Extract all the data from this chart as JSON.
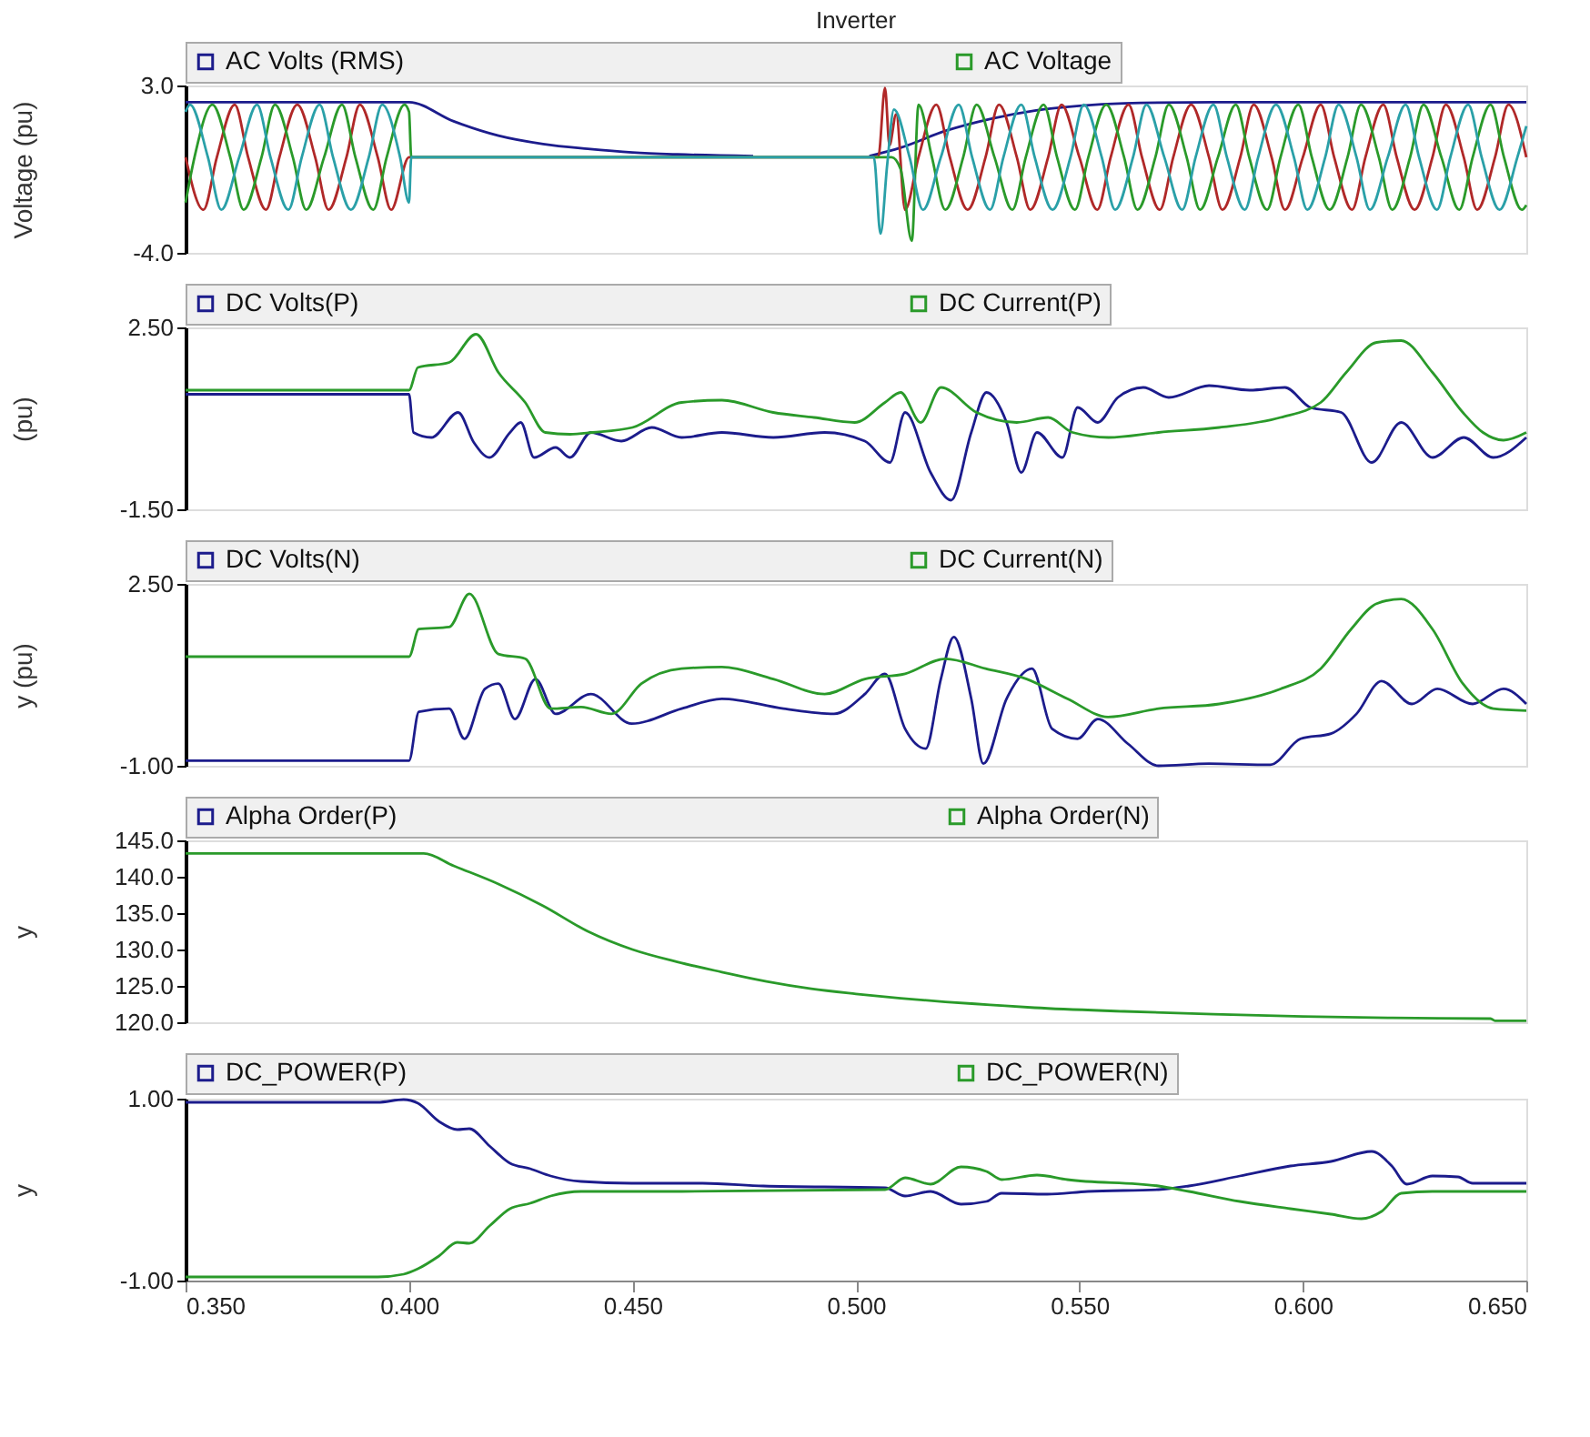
{
  "chart_data": [
    {
      "type": "line",
      "title": "Inverter",
      "ylabel": "Voltage (pu)",
      "legend": "top",
      "tick_labels": "y",
      "grid": false,
      "xlim": [
        0.35,
        0.65
      ],
      "ylim": [
        -4.0,
        3.0
      ],
      "yticks": [
        {
          "value": -4.0,
          "label": "-4.0"
        },
        {
          "value": 3.0,
          "label": "3.0"
        }
      ],
      "series": [
        {
          "name": "AC Volts (RMS)",
          "color": "#1c1c8c",
          "x": [
            0.35,
            0.4,
            0.41,
            0.42,
            0.43,
            0.44,
            0.45,
            0.46,
            0.477,
            0.478,
            0.503,
            0.51,
            0.52,
            0.53,
            0.54,
            0.55,
            0.56,
            0.58,
            0.65
          ],
          "values": [
            2.3,
            2.3,
            1.5,
            0.9,
            0.55,
            0.35,
            0.2,
            0.12,
            0.05,
            null,
            0.05,
            0.4,
            1.1,
            1.6,
            1.95,
            2.15,
            2.25,
            2.3,
            2.3
          ]
        },
        {
          "color": "#b02828",
          "x": [
            0.35,
            0.354,
            0.357,
            0.361,
            0.364,
            0.368,
            0.371,
            0.375,
            0.379,
            0.382,
            0.386,
            0.389,
            0.393,
            0.396,
            0.4,
            0.48,
            0.505,
            0.5065,
            0.5075,
            0.509,
            0.511,
            0.514,
            0.518,
            0.521,
            0.525,
            0.529,
            0.532,
            0.536,
            0.539,
            0.543,
            0.546,
            0.55,
            0.554,
            0.557,
            0.561,
            0.564,
            0.568,
            0.571,
            0.575,
            0.579,
            0.582,
            0.586,
            0.589,
            0.593,
            0.596,
            0.6,
            0.604,
            0.607,
            0.611,
            0.614,
            0.618,
            0.621,
            0.625,
            0.629,
            0.632,
            0.636,
            0.639,
            0.643,
            0.646,
            0.65
          ],
          "values": [
            0,
            -2.2,
            0,
            2.2,
            0,
            -2.2,
            0,
            2.2,
            0,
            -2.2,
            0,
            2.2,
            0,
            -2.2,
            0,
            0,
            0,
            2.9,
            0.5,
            1.8,
            -2.2,
            0,
            2.2,
            0,
            -2.2,
            0,
            2.2,
            0,
            -2.2,
            0,
            2.2,
            0,
            -2.2,
            0,
            2.2,
            0,
            -2.2,
            0,
            2.2,
            0,
            -2.2,
            0,
            2.2,
            0,
            -2.2,
            0,
            2.2,
            0,
            -2.2,
            0,
            2.2,
            0,
            -2.2,
            0,
            2.2,
            0,
            -2.2,
            0,
            2.2,
            0
          ]
        },
        {
          "name": "AC Voltage",
          "color": "#2a9a2a",
          "x": [
            0.35,
            0.352,
            0.356,
            0.36,
            0.363,
            0.367,
            0.37,
            0.374,
            0.377,
            0.381,
            0.385,
            0.388,
            0.392,
            0.395,
            0.399,
            0.4,
            0.4005,
            0.508,
            0.51,
            0.5125,
            0.514,
            0.517,
            0.52,
            0.524,
            0.527,
            0.531,
            0.535,
            0.538,
            0.542,
            0.545,
            0.549,
            0.552,
            0.556,
            0.56,
            0.563,
            0.567,
            0.57,
            0.574,
            0.577,
            0.581,
            0.585,
            0.588,
            0.592,
            0.595,
            0.599,
            0.602,
            0.606,
            0.61,
            0.613,
            0.617,
            0.62,
            0.624,
            0.627,
            0.631,
            0.635,
            0.638,
            0.642,
            0.645,
            0.649,
            0.65
          ],
          "values": [
            -1.9,
            0,
            2.2,
            0,
            -2.2,
            0,
            2.2,
            0,
            -2.2,
            0,
            2.2,
            0,
            -2.2,
            0,
            2.2,
            1.9,
            0,
            0,
            -0.5,
            -3.5,
            2.2,
            0,
            -2.2,
            0,
            2.2,
            0,
            -2.2,
            0,
            2.2,
            0,
            -2.2,
            0,
            2.2,
            0,
            -2.2,
            0,
            2.2,
            0,
            -2.2,
            0,
            2.2,
            0,
            -2.2,
            0,
            2.2,
            0,
            -2.2,
            0,
            2.2,
            0,
            -2.2,
            0,
            2.2,
            0,
            -2.2,
            0,
            2.2,
            0,
            -2.2,
            -2.0
          ]
        },
        {
          "color": "#2aa0a8",
          "x": [
            0.35,
            0.351,
            0.355,
            0.358,
            0.362,
            0.366,
            0.369,
            0.373,
            0.376,
            0.38,
            0.383,
            0.387,
            0.391,
            0.394,
            0.398,
            0.4,
            0.4005,
            0.504,
            0.5055,
            0.507,
            0.5085,
            0.512,
            0.515,
            0.519,
            0.523,
            0.526,
            0.53,
            0.533,
            0.537,
            0.54,
            0.544,
            0.548,
            0.551,
            0.555,
            0.558,
            0.562,
            0.565,
            0.569,
            0.573,
            0.576,
            0.58,
            0.583,
            0.587,
            0.59,
            0.594,
            0.598,
            0.601,
            0.605,
            0.608,
            0.612,
            0.615,
            0.619,
            0.623,
            0.626,
            0.63,
            0.633,
            0.637,
            0.64,
            0.644,
            0.648,
            0.65
          ],
          "values": [
            1.9,
            2.2,
            0,
            -2.2,
            0,
            2.2,
            0,
            -2.2,
            0,
            2.2,
            0,
            -2.2,
            0,
            2.2,
            0,
            -1.9,
            0,
            0,
            -3.2,
            -0.3,
            2.0,
            0,
            -2.2,
            0,
            2.2,
            0,
            -2.2,
            0,
            2.2,
            0,
            -2.2,
            0,
            2.2,
            0,
            -2.2,
            0,
            2.2,
            0,
            -2.2,
            0,
            2.2,
            0,
            -2.2,
            0,
            2.2,
            0,
            -2.2,
            0,
            2.2,
            0,
            -2.2,
            0,
            2.2,
            0,
            -2.2,
            0,
            2.2,
            0,
            -2.2,
            0,
            1.3
          ]
        }
      ]
    },
    {
      "type": "line",
      "ylabel": "(pu)",
      "legend": "top",
      "tick_labels": "y",
      "grid": false,
      "xlim": [
        0.35,
        0.65
      ],
      "ylim": [
        -1.5,
        2.5
      ],
      "yticks": [
        {
          "value": -1.5,
          "label": "-1.50"
        },
        {
          "value": 2.5,
          "label": "2.50"
        }
      ],
      "series": [
        {
          "name": "DC Volts(P)",
          "color": "#1c1c8c",
          "x": [
            0.35,
            0.4,
            0.401,
            0.405,
            0.411,
            0.4145,
            0.418,
            0.4226,
            0.425,
            0.428,
            0.4328,
            0.436,
            0.4407,
            0.4475,
            0.4543,
            0.461,
            0.47,
            0.4815,
            0.493,
            0.502,
            0.5076,
            0.511,
            0.5167,
            0.5213,
            0.5258,
            0.5292,
            0.5337,
            0.537,
            0.5405,
            0.5462,
            0.5496,
            0.5541,
            0.5586,
            0.5643,
            0.57,
            0.579,
            0.5881,
            0.596,
            0.6017,
            0.6086,
            0.6154,
            0.622,
            0.629,
            0.636,
            0.6426,
            0.65
          ],
          "values": [
            1.03,
            1.03,
            0.19,
            0.08,
            0.63,
            -0.03,
            -0.36,
            0.19,
            0.41,
            -0.36,
            -0.14,
            -0.36,
            0.19,
            0.0,
            0.3,
            0.08,
            0.19,
            0.08,
            0.19,
            0.0,
            -0.47,
            0.63,
            -0.69,
            -1.3,
            0.19,
            1.07,
            0.41,
            -0.69,
            0.19,
            -0.36,
            0.74,
            0.41,
            0.96,
            1.18,
            0.96,
            1.22,
            1.12,
            1.18,
            0.74,
            0.63,
            -0.47,
            0.41,
            -0.36,
            0.08,
            -0.36,
            0.08
          ]
        },
        {
          "name": "DC Current(P)",
          "color": "#2a9a2a",
          "x": [
            0.35,
            0.4,
            0.402,
            0.409,
            0.415,
            0.42,
            0.426,
            0.4305,
            0.436,
            0.441,
            0.45,
            0.461,
            0.47,
            0.4815,
            0.4906,
            0.4997,
            0.5065,
            0.51,
            0.5145,
            0.519,
            0.527,
            0.536,
            0.543,
            0.5485,
            0.5565,
            0.5677,
            0.5813,
            0.595,
            0.604,
            0.6097,
            0.6165,
            0.622,
            0.629,
            0.6358,
            0.6403,
            0.6449,
            0.65
          ],
          "values": [
            1.12,
            1.12,
            1.62,
            1.73,
            2.35,
            1.51,
            0.85,
            0.19,
            0.15,
            0.19,
            0.3,
            0.85,
            0.9,
            0.63,
            0.52,
            0.41,
            0.85,
            1.07,
            0.41,
            1.18,
            0.63,
            0.41,
            0.52,
            0.19,
            0.08,
            0.19,
            0.3,
            0.52,
            0.85,
            1.51,
            2.17,
            2.21,
            1.51,
            0.63,
            0.19,
            0.02,
            0.19
          ]
        }
      ]
    },
    {
      "type": "line",
      "ylabel": "y (pu)",
      "legend": "top",
      "tick_labels": "y",
      "grid": false,
      "xlim": [
        0.35,
        0.65
      ],
      "ylim": [
        -1.0,
        2.5
      ],
      "yticks": [
        {
          "value": -1.0,
          "label": "-1.00"
        },
        {
          "value": 2.5,
          "label": "2.50"
        }
      ],
      "series": [
        {
          "name": "DC Volts(N)",
          "color": "#1c1c8c",
          "x": [
            0.35,
            0.4,
            0.4022,
            0.409,
            0.4124,
            0.417,
            0.42,
            0.4237,
            0.4283,
            0.4328,
            0.4407,
            0.4498,
            0.461,
            0.47,
            0.4838,
            0.4951,
            0.502,
            0.5065,
            0.511,
            0.5156,
            0.519,
            0.5219,
            0.5258,
            0.5285,
            0.5337,
            0.5394,
            0.5439,
            0.5496,
            0.5541,
            0.5609,
            0.5677,
            0.579,
            0.5927,
            0.5995,
            0.6063,
            0.612,
            0.6176,
            0.6244,
            0.6301,
            0.638,
            0.6449,
            0.65
          ],
          "values": [
            -0.9,
            -0.9,
            0.04,
            0.1,
            -0.48,
            0.48,
            0.58,
            -0.1,
            0.67,
            0.0,
            0.38,
            -0.19,
            0.1,
            0.29,
            0.1,
            0.0,
            0.38,
            0.77,
            -0.29,
            -0.67,
            0.67,
            1.48,
            0.29,
            -0.96,
            0.29,
            0.87,
            -0.29,
            -0.48,
            -0.1,
            -0.58,
            -1.0,
            -0.96,
            -0.98,
            -0.48,
            -0.38,
            0.0,
            0.63,
            0.19,
            0.48,
            0.19,
            0.48,
            0.19
          ]
        },
        {
          "name": "DC Current(N)",
          "color": "#2a9a2a",
          "x": [
            0.35,
            0.4,
            0.4022,
            0.409,
            0.4135,
            0.42,
            0.426,
            0.4317,
            0.4385,
            0.4453,
            0.452,
            0.461,
            0.47,
            0.4815,
            0.493,
            0.502,
            0.511,
            0.52,
            0.529,
            0.5382,
            0.5473,
            0.5564,
            0.5677,
            0.5813,
            0.595,
            0.604,
            0.6108,
            0.6165,
            0.622,
            0.629,
            0.6358,
            0.6426,
            0.65
          ],
          "values": [
            1.1,
            1.1,
            1.63,
            1.67,
            2.31,
            1.15,
            1.06,
            0.1,
            0.13,
            0.0,
            0.58,
            0.87,
            0.9,
            0.67,
            0.38,
            0.67,
            0.77,
            1.06,
            0.87,
            0.67,
            0.29,
            -0.06,
            0.1,
            0.19,
            0.48,
            0.87,
            1.63,
            2.12,
            2.21,
            1.63,
            0.58,
            0.1,
            0.06
          ]
        }
      ]
    },
    {
      "type": "line",
      "ylabel": "y",
      "legend": "top",
      "tick_labels": "y",
      "grid": false,
      "xlim": [
        0.35,
        0.65
      ],
      "ylim": [
        120.0,
        145.0
      ],
      "yticks": [
        {
          "value": 120,
          "label": "120.0"
        },
        {
          "value": 125,
          "label": "125.0"
        },
        {
          "value": 130,
          "label": "130.0"
        },
        {
          "value": 135,
          "label": "135.0"
        },
        {
          "value": 140,
          "label": "140.0"
        },
        {
          "value": 145,
          "label": "145.0"
        }
      ],
      "x": [
        0.35,
        0.4033,
        0.41,
        0.42,
        0.43,
        0.44,
        0.45,
        0.46,
        0.47,
        0.48,
        0.49,
        0.5,
        0.51,
        0.52,
        0.53,
        0.54,
        0.56,
        0.58,
        0.6,
        0.62,
        0.642,
        0.643,
        0.65
      ],
      "series": [
        {
          "name": "Alpha Order(P)",
          "color": "#1c1c8c",
          "values": [
            null,
            null,
            null,
            null,
            null,
            null,
            null,
            null,
            null,
            null,
            null,
            null,
            null,
            null,
            null,
            null,
            null,
            null,
            null,
            null,
            null,
            null,
            null
          ]
        },
        {
          "name": "Alpha Order(N)",
          "color": "#2a9a2a",
          "values": [
            143.2,
            143.2,
            141.5,
            139,
            136,
            132.5,
            130,
            128.3,
            126.9,
            125.6,
            124.6,
            123.9,
            123.3,
            122.8,
            122.4,
            122.0,
            121.5,
            121.1,
            120.8,
            120.6,
            120.5,
            120.2,
            120.2
          ]
        }
      ]
    },
    {
      "type": "line",
      "ylabel": "y",
      "legend": "top",
      "grid": false,
      "xlim": [
        0.35,
        0.65
      ],
      "xticks": [
        {
          "value": 0.35,
          "label": "0.350"
        },
        {
          "value": 0.4,
          "label": "0.400"
        },
        {
          "value": 0.45,
          "label": "0.450"
        },
        {
          "value": 0.5,
          "label": "0.500"
        },
        {
          "value": 0.55,
          "label": "0.550"
        },
        {
          "value": 0.6,
          "label": "0.600"
        },
        {
          "value": 0.65,
          "label": "0.650"
        }
      ],
      "ylim": [
        -1.0,
        1.0
      ],
      "yticks": [
        {
          "value": -1.0,
          "label": "-1.00"
        },
        {
          "value": 1.0,
          "label": "1.00"
        }
      ],
      "series": [
        {
          "name": "DC_POWER(P)",
          "color": "#1c1c8c",
          "x": [
            0.35,
            0.393,
            0.3988,
            0.402,
            0.4067,
            0.4108,
            0.4135,
            0.418,
            0.4226,
            0.4271,
            0.4317,
            0.4385,
            0.4498,
            0.4657,
            0.4793,
            0.5065,
            0.511,
            0.5167,
            0.5235,
            0.5292,
            0.5326,
            0.5428,
            0.5519,
            0.5677,
            0.5745,
            0.5859,
            0.5972,
            0.6063,
            0.6154,
            0.6199,
            0.6233,
            0.629,
            0.6347,
            0.638,
            0.65
          ],
          "values": [
            0.96,
            0.96,
            0.99,
            0.95,
            0.75,
            0.66,
            0.67,
            0.48,
            0.29,
            0.23,
            0.15,
            0.09,
            0.07,
            0.07,
            0.04,
            0.02,
            -0.07,
            -0.02,
            -0.16,
            -0.13,
            -0.04,
            -0.05,
            -0.02,
            0.0,
            0.04,
            0.15,
            0.26,
            0.31,
            0.42,
            0.26,
            0.06,
            0.15,
            0.14,
            0.07,
            0.07
          ]
        },
        {
          "name": "DC_POWER(N)",
          "color": "#2a9a2a",
          "x": [
            0.35,
            0.393,
            0.3988,
            0.402,
            0.4067,
            0.4108,
            0.4135,
            0.418,
            0.4226,
            0.4271,
            0.4317,
            0.4385,
            0.461,
            0.5065,
            0.511,
            0.5167,
            0.5235,
            0.5292,
            0.5326,
            0.5405,
            0.5473,
            0.5677,
            0.5745,
            0.5859,
            0.5972,
            0.6063,
            0.6131,
            0.6176,
            0.622,
            0.629,
            0.65
          ],
          "values": [
            -0.96,
            -0.96,
            -0.93,
            -0.87,
            -0.73,
            -0.58,
            -0.59,
            -0.4,
            -0.21,
            -0.15,
            -0.07,
            -0.02,
            -0.02,
            0.0,
            0.13,
            0.06,
            0.25,
            0.2,
            0.11,
            0.16,
            0.11,
            0.04,
            -0.02,
            -0.13,
            -0.21,
            -0.27,
            -0.32,
            -0.24,
            -0.04,
            -0.02,
            -0.02
          ]
        }
      ]
    }
  ]
}
